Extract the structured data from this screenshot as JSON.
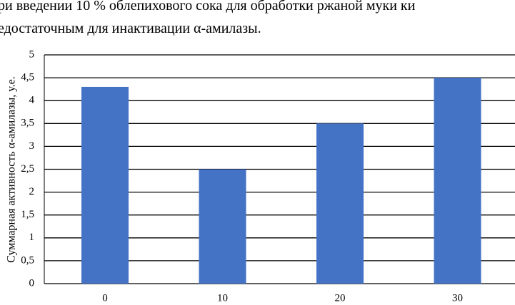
{
  "text_lines": [
    "ри введении 10 % облепихового сока для обработки ржаной муки ки",
    "едостаточным для инактивации α-амилазы."
  ],
  "chart_data": {
    "type": "bar",
    "y_label": "Суммарная активность α-амилазы, у.е.",
    "categories": [
      "0",
      "10",
      "20",
      "30"
    ],
    "values": [
      4.3,
      2.5,
      3.5,
      4.5
    ],
    "color": "#4472c4",
    "ylim": [
      0,
      5
    ],
    "yticks": [
      0,
      {
        "value": 0.5,
        "label": "0,5"
      },
      1,
      {
        "value": 1.5,
        "label": "1,5"
      },
      2,
      {
        "value": 2.5,
        "label": "2,5"
      },
      3,
      {
        "value": 3.5,
        "label": "3,5"
      },
      4,
      {
        "value": 4.5,
        "label": "4,5"
      },
      5
    ],
    "grid": true
  }
}
